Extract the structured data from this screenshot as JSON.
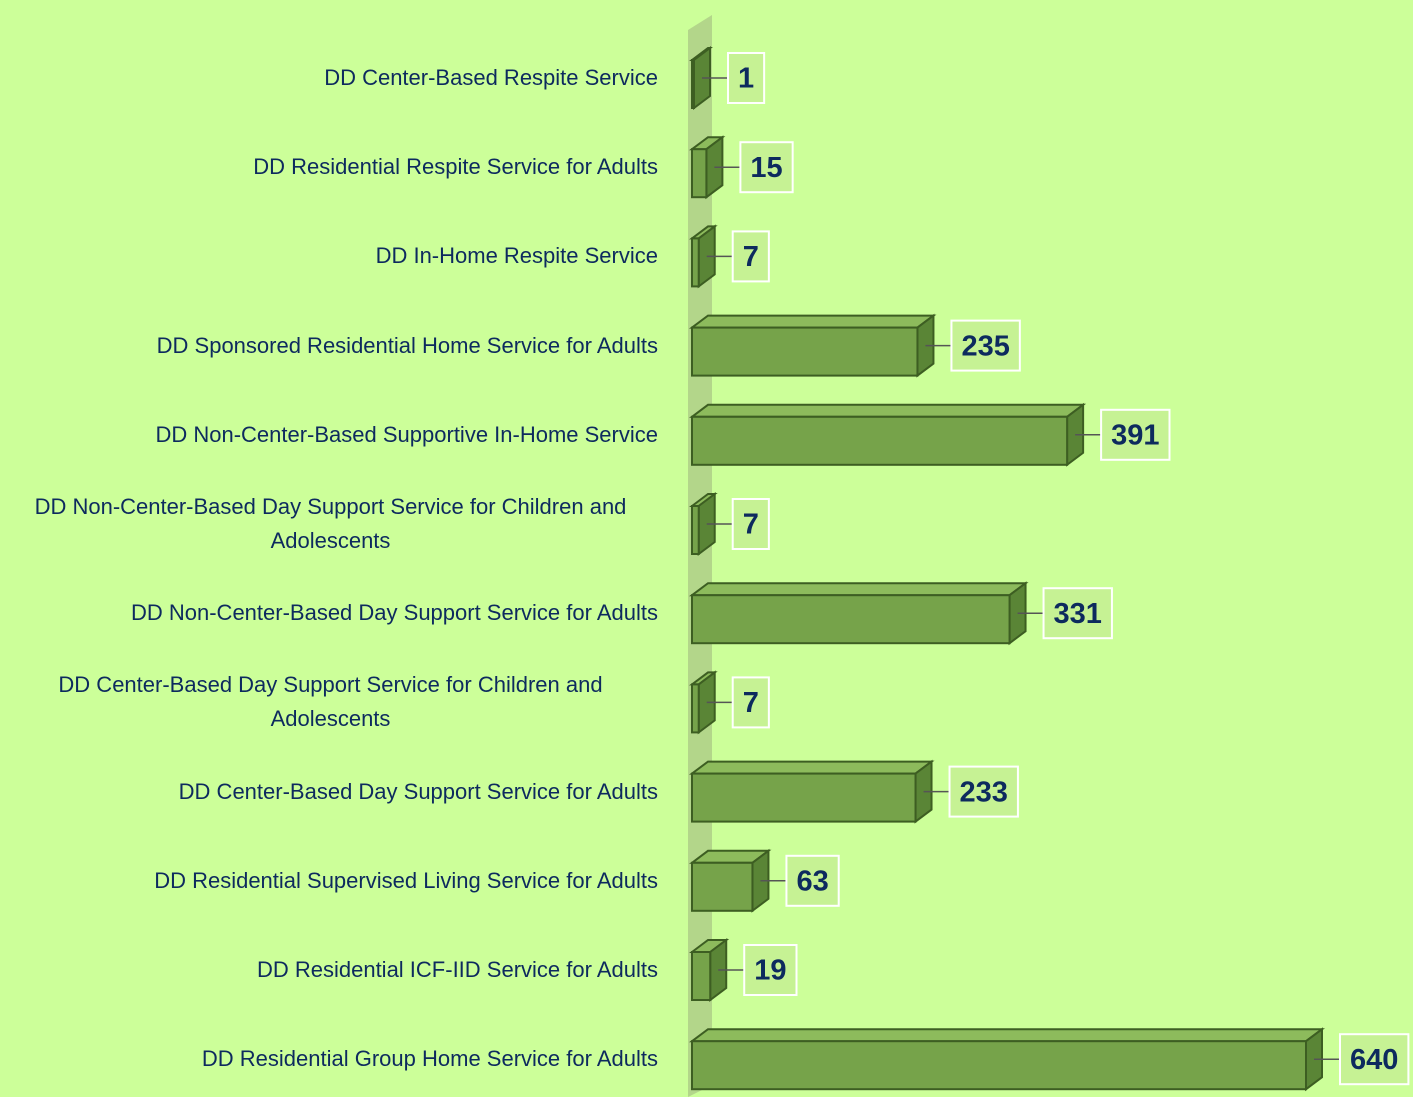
{
  "chart_data": {
    "type": "bar",
    "orientation": "horizontal",
    "categories": [
      "DD Center-Based Respite Service",
      "DD Residential Respite Service for Adults",
      "DD In-Home Respite Service",
      "DD Sponsored Residential Home Service for Adults",
      "DD Non-Center-Based Supportive In-Home Service",
      "DD Non-Center-Based Day Support Service for Children and Adolescents",
      "DD Non-Center-Based Day Support Service for Adults",
      "DD Center-Based Day Support Service for Children and Adolescents",
      "DD Center-Based Day Support Service for Adults",
      "DD Residential Supervised Living Service for Adults",
      "DD Residential ICF-IID Service for Adults",
      "DD Residential Group Home Service for Adults"
    ],
    "values": [
      1,
      15,
      7,
      235,
      391,
      7,
      331,
      7,
      233,
      63,
      19,
      640
    ],
    "color": "#76a34a",
    "background": "#ccff99"
  }
}
